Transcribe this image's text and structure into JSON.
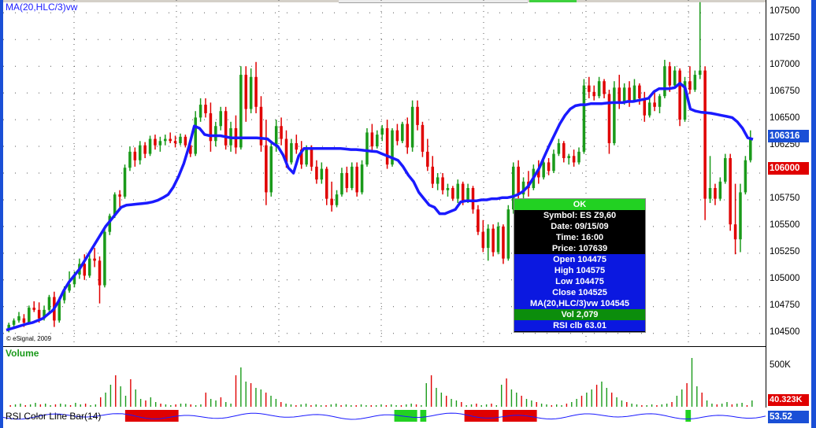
{
  "chart_title": "MA(20,HLC/3)vw",
  "copyright": "© eSignal, 2009",
  "price_axis": {
    "labels": [
      "107500",
      "107250",
      "107000",
      "106750",
      "106500",
      "106250",
      "106000",
      "105750",
      "105500",
      "105250",
      "105000",
      "104750",
      "104500"
    ],
    "last_tag": "106316",
    "current_tag": "106000",
    "partial_label": "106250"
  },
  "colors": {
    "up": "#1a9a1a",
    "down": "#e00000",
    "ma_line": "#1a1aff",
    "border": "#1a4fd6"
  },
  "chart_data": {
    "type": "candlestick",
    "ylim": [
      104380,
      107620
    ],
    "ma_series_name": "MA(20,HLC/3)vw",
    "ohlc": [
      [
        104530,
        104600,
        104510,
        104580
      ],
      [
        104580,
        104640,
        104540,
        104620
      ],
      [
        104620,
        104700,
        104600,
        104660
      ],
      [
        104640,
        104680,
        104560,
        104600
      ],
      [
        104600,
        104760,
        104590,
        104740
      ],
      [
        104740,
        104800,
        104700,
        104720
      ],
      [
        104720,
        104790,
        104600,
        104640
      ],
      [
        104640,
        104760,
        104620,
        104720
      ],
      [
        104720,
        104860,
        104700,
        104840
      ],
      [
        104840,
        104890,
        104560,
        104620
      ],
      [
        104620,
        104840,
        104600,
        104810
      ],
      [
        104810,
        104940,
        104780,
        104900
      ],
      [
        104900,
        105080,
        104880,
        104960
      ],
      [
        104960,
        105080,
        104930,
        105050
      ],
      [
        105050,
        105200,
        105010,
        105150
      ],
      [
        105150,
        105240,
        105000,
        105040
      ],
      [
        105040,
        105260,
        105020,
        105200
      ],
      [
        105200,
        105300,
        105120,
        105180
      ],
      [
        105180,
        105220,
        104780,
        104950
      ],
      [
        104950,
        105480,
        104930,
        105450
      ],
      [
        105450,
        105620,
        105420,
        105600
      ],
      [
        105600,
        105820,
        105580,
        105800
      ],
      [
        105800,
        105840,
        105660,
        105780
      ],
      [
        105780,
        106080,
        105760,
        106050
      ],
      [
        106050,
        106250,
        106020,
        106200
      ],
      [
        106200,
        106240,
        106060,
        106120
      ],
      [
        106120,
        106300,
        106080,
        106260
      ],
      [
        106260,
        106290,
        106140,
        106180
      ],
      [
        106180,
        106350,
        106160,
        106320
      ],
      [
        106320,
        106360,
        106220,
        106260
      ],
      [
        106260,
        106340,
        106200,
        106300
      ],
      [
        106300,
        106360,
        106260,
        106320
      ],
      [
        106320,
        106380,
        106280,
        106300
      ],
      [
        106300,
        106350,
        106240,
        106280
      ],
      [
        106280,
        106370,
        106260,
        106340
      ],
      [
        106340,
        106360,
        106240,
        106260
      ],
      [
        106260,
        106300,
        106150,
        106180
      ],
      [
        106180,
        106580,
        106160,
        106520
      ],
      [
        106520,
        106700,
        106480,
        106640
      ],
      [
        106640,
        106700,
        106520,
        106560
      ],
      [
        106560,
        106660,
        106200,
        106300
      ],
      [
        106300,
        106480,
        106250,
        106440
      ],
      [
        106440,
        106620,
        106400,
        106580
      ],
      [
        106580,
        106620,
        106220,
        106260
      ],
      [
        106260,
        106480,
        106200,
        106420
      ],
      [
        106420,
        106540,
        106180,
        106240
      ],
      [
        106240,
        107000,
        106220,
        106920
      ],
      [
        106920,
        107000,
        106480,
        106600
      ],
      [
        106600,
        106980,
        106560,
        106900
      ],
      [
        106900,
        107040,
        106560,
        106620
      ],
      [
        106620,
        106720,
        106200,
        106260
      ],
      [
        106260,
        106500,
        105700,
        105820
      ],
      [
        105820,
        106300,
        105780,
        106250
      ],
      [
        106250,
        106500,
        106200,
        106440
      ],
      [
        106440,
        106520,
        106260,
        106320
      ],
      [
        106320,
        106400,
        106050,
        106100
      ],
      [
        106100,
        106320,
        106080,
        106280
      ],
      [
        106280,
        106360,
        106180,
        106220
      ],
      [
        106220,
        106300,
        106040,
        106080
      ],
      [
        106080,
        106260,
        106060,
        106220
      ],
      [
        106220,
        106260,
        106020,
        106060
      ],
      [
        106060,
        106120,
        105900,
        105940
      ],
      [
        105940,
        106100,
        105900,
        106040
      ],
      [
        106040,
        106060,
        105700,
        105760
      ],
      [
        105760,
        105920,
        105640,
        105700
      ],
      [
        105700,
        105840,
        105680,
        105800
      ],
      [
        105800,
        106050,
        105780,
        106000
      ],
      [
        106000,
        106060,
        105820,
        105860
      ],
      [
        105860,
        106100,
        105840,
        106060
      ],
      [
        106060,
        106100,
        105780,
        105820
      ],
      [
        105820,
        106120,
        105800,
        106080
      ],
      [
        106080,
        106420,
        106060,
        106380
      ],
      [
        106380,
        106460,
        106200,
        106250
      ],
      [
        106250,
        106400,
        106230,
        106360
      ],
      [
        106360,
        106450,
        106300,
        106420
      ],
      [
        106420,
        106500,
        106040,
        106080
      ],
      [
        106080,
        106420,
        106060,
        106400
      ],
      [
        106400,
        106460,
        106260,
        106300
      ],
      [
        106300,
        106480,
        106280,
        106460
      ],
      [
        106460,
        106520,
        106180,
        106240
      ],
      [
        106240,
        106680,
        106200,
        106620
      ],
      [
        106620,
        106680,
        106400,
        106450
      ],
      [
        106450,
        106480,
        106150,
        106200
      ],
      [
        106200,
        106320,
        106020,
        106060
      ],
      [
        106060,
        106160,
        105860,
        105900
      ],
      [
        105900,
        106000,
        105840,
        105960
      ],
      [
        105960,
        106000,
        105800,
        105840
      ],
      [
        105840,
        105900,
        105780,
        105860
      ],
      [
        105860,
        105880,
        105740,
        105760
      ],
      [
        105760,
        105940,
        105720,
        105900
      ],
      [
        105900,
        105920,
        105700,
        105740
      ],
      [
        105740,
        105900,
        105720,
        105860
      ],
      [
        105860,
        105880,
        105620,
        105660
      ],
      [
        105660,
        105700,
        105420,
        105450
      ],
      [
        105450,
        105560,
        105260,
        105300
      ],
      [
        105300,
        105520,
        105180,
        105480
      ],
      [
        105480,
        105520,
        105220,
        105260
      ],
      [
        105260,
        105540,
        105240,
        105500
      ],
      [
        105500,
        105520,
        105150,
        105200
      ],
      [
        105200,
        105700,
        105180,
        105660
      ],
      [
        105660,
        106100,
        105620,
        106060
      ],
      [
        106060,
        106120,
        105760,
        105800
      ],
      [
        105800,
        105960,
        105720,
        105920
      ],
      [
        105920,
        106020,
        105780,
        105860
      ],
      [
        105860,
        106080,
        105840,
        106040
      ],
      [
        106040,
        106120,
        105900,
        105960
      ],
      [
        105960,
        106160,
        105940,
        106100
      ],
      [
        106100,
        106140,
        105980,
        106020
      ],
      [
        106020,
        106220,
        106000,
        106180
      ],
      [
        106180,
        106320,
        106160,
        106280
      ],
      [
        106280,
        106300,
        106100,
        106140
      ],
      [
        106140,
        106180,
        106080,
        106160
      ],
      [
        106160,
        106220,
        106060,
        106100
      ],
      [
        106100,
        106240,
        106080,
        106200
      ],
      [
        106200,
        106880,
        106180,
        106820
      ],
      [
        106820,
        106900,
        106700,
        106760
      ],
      [
        106760,
        106820,
        106680,
        106720
      ],
      [
        106720,
        106900,
        106700,
        106860
      ],
      [
        106860,
        106880,
        106700,
        106740
      ],
      [
        106740,
        106780,
        106180,
        106280
      ],
      [
        106280,
        106860,
        106260,
        106800
      ],
      [
        106800,
        106920,
        106600,
        106660
      ],
      [
        106660,
        106840,
        106640,
        106800
      ],
      [
        106800,
        106860,
        106620,
        106680
      ],
      [
        106680,
        106880,
        106660,
        106820
      ],
      [
        106820,
        106840,
        106640,
        106700
      ],
      [
        106700,
        106760,
        106480,
        106540
      ],
      [
        106540,
        106700,
        106520,
        106660
      ],
      [
        106660,
        106780,
        106580,
        106620
      ],
      [
        106620,
        106740,
        106560,
        106720
      ],
      [
        106720,
        107060,
        106700,
        107000
      ],
      [
        107000,
        107040,
        106760,
        106820
      ],
      [
        106820,
        107000,
        106800,
        106960
      ],
      [
        106960,
        106980,
        106440,
        106500
      ],
      [
        106500,
        106900,
        106480,
        106860
      ],
      [
        106860,
        107000,
        106740,
        106780
      ],
      [
        106780,
        106960,
        106760,
        106920
      ],
      [
        106920,
        107600,
        106880,
        106960
      ],
      [
        106960,
        107000,
        105560,
        105760
      ],
      [
        105760,
        106160,
        105720,
        105860
      ],
      [
        105860,
        105900,
        105700,
        105760
      ],
      [
        105760,
        105960,
        105740,
        105920
      ],
      [
        105920,
        106180,
        105900,
        106140
      ],
      [
        106140,
        106180,
        105460,
        105520
      ],
      [
        105520,
        105900,
        105240,
        105380
      ],
      [
        105380,
        105900,
        105260,
        105820
      ],
      [
        105820,
        106160,
        105800,
        106120
      ],
      [
        106120,
        106400,
        106100,
        106320
      ]
    ],
    "ma": [
      104530,
      104545,
      104560,
      104575,
      104590,
      104600,
      104620,
      104640,
      104680,
      104720,
      104800,
      104900,
      104980,
      105040,
      105100,
      105180,
      105260,
      105340,
      105420,
      105500,
      105560,
      105620,
      105680,
      105700,
      105705,
      105710,
      105715,
      105720,
      105730,
      105745,
      105770,
      105800,
      105870,
      105970,
      106090,
      106250,
      106440,
      106420,
      106360,
      106350,
      106350,
      106350,
      106340,
      106330,
      106330,
      106330,
      106330,
      106330,
      106330,
      106325,
      106320,
      106280,
      106250,
      106170,
      106050,
      106000,
      106160,
      106230,
      106230,
      106230,
      106230,
      106230,
      106230,
      106230,
      106230,
      106225,
      106220,
      106220,
      106215,
      106210,
      106205,
      106200,
      106180,
      106160,
      106140,
      106120,
      106060,
      105980,
      105920,
      105820,
      105760,
      105700,
      105680,
      105620,
      105620,
      105640,
      105660,
      105730,
      105740,
      105740,
      105740,
      105750,
      105750,
      105760,
      105760,
      105770,
      105770,
      105780,
      105800,
      105830,
      105880,
      105960,
      106040,
      106150,
      106260,
      106360,
      106460,
      106540,
      106600,
      106630,
      106640,
      106640,
      106650,
      106650,
      106650,
      106655,
      106660,
      106660,
      106660,
      106670,
      106670,
      106680,
      106690,
      106700,
      106760,
      106790,
      106790,
      106790,
      106800,
      106840,
      106800,
      106600,
      106580,
      106570,
      106565,
      106560,
      106550,
      106540,
      106530,
      106520,
      106480,
      106420,
      106330,
      106316
    ],
    "volume_heights": [
      2,
      3,
      4,
      2,
      3,
      5,
      3,
      4,
      2,
      3,
      4,
      3,
      2,
      5,
      3,
      4,
      2,
      3,
      12,
      18,
      28,
      40,
      26,
      14,
      35,
      22,
      10,
      8,
      12,
      6,
      4,
      3,
      2,
      3,
      4,
      4,
      3,
      2,
      3,
      18,
      10,
      8,
      12,
      6,
      4,
      40,
      50,
      32,
      30,
      24,
      22,
      18,
      14,
      10,
      6,
      4,
      3,
      2,
      3,
      4,
      2,
      3,
      2,
      2,
      3,
      4,
      2,
      3,
      2,
      2,
      3,
      2,
      2,
      2,
      3,
      2,
      3,
      2,
      2,
      3,
      4,
      3,
      2,
      30,
      40,
      24,
      18,
      14,
      10,
      8,
      6,
      2,
      3,
      4,
      2,
      3,
      4,
      2,
      28,
      36,
      22,
      18,
      14,
      10,
      8,
      6,
      4,
      3,
      2,
      3,
      2,
      4,
      6,
      10,
      14,
      18,
      22,
      28,
      32,
      24,
      18,
      12,
      8,
      6,
      4,
      3,
      2,
      2,
      3,
      2,
      3,
      4,
      6,
      14,
      22,
      30,
      62,
      26,
      18,
      8,
      4,
      3,
      4,
      6,
      3,
      4,
      5,
      2,
      8
    ],
    "rsi_blocks": [
      {
        "from": 0.16,
        "to": 0.23,
        "color": "#e00000"
      },
      {
        "from": 0.513,
        "to": 0.543,
        "color": "#22d122"
      },
      {
        "from": 0.547,
        "to": 0.555,
        "color": "#22d122"
      },
      {
        "from": 0.605,
        "to": 0.65,
        "color": "#e00000"
      },
      {
        "from": 0.655,
        "to": 0.7,
        "color": "#e00000"
      },
      {
        "from": 0.895,
        "to": 0.902,
        "color": "#22d122"
      }
    ]
  },
  "info_panel": {
    "status": "OK",
    "symbol": "Symbol: ES Z9,60",
    "date": "Date: 09/15/09",
    "time": "Time: 16:00",
    "price": "Price: 107639",
    "open": "Open 104475",
    "high": "High 104575",
    "low": "Low 104475",
    "close": "Close 104525",
    "ma": "MA(20,HLC/3)vw 104545",
    "vol": "Vol 2,079",
    "rsi": "RSI clb 63.01"
  },
  "volume_panel": {
    "title": "Volume",
    "axis_label": "500K",
    "tag": "40.323K"
  },
  "rsi_panel": {
    "title": "RSI Color Line Bar(14)",
    "tag": "53.52"
  }
}
